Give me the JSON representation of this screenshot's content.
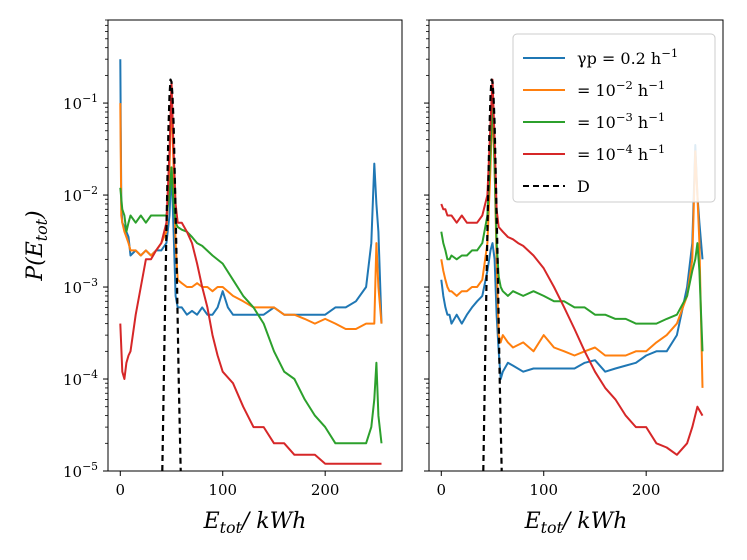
{
  "chart_data": [
    {
      "type": "line",
      "panel": "left",
      "xlabel": "E_tot/ kWh",
      "ylabel": "P(E_tot)",
      "xlim": [
        -12,
        275
      ],
      "ylim": [
        1e-05,
        0.8
      ],
      "yscale": "log",
      "xticks": [
        0,
        100,
        200
      ],
      "yticks": [
        {
          "value": 1e-05,
          "label": "10^-5"
        },
        {
          "value": 0.0001,
          "label": "10^-4"
        },
        {
          "value": 0.001,
          "label": "10^-3"
        },
        {
          "value": 0.01,
          "label": "10^-2"
        },
        {
          "value": 0.1,
          "label": "10^-1"
        }
      ],
      "series": [
        {
          "name": "γp = 0.2 h^-1",
          "color": "#1f77b4",
          "style": "solid",
          "x": [
            0,
            1,
            2,
            4,
            6,
            8,
            10,
            15,
            20,
            25,
            30,
            35,
            40,
            45,
            48,
            50,
            52,
            54,
            56,
            60,
            65,
            70,
            75,
            80,
            85,
            90,
            95,
            100,
            105,
            110,
            120,
            130,
            140,
            150,
            160,
            170,
            180,
            190,
            200,
            210,
            220,
            230,
            240,
            245,
            248,
            250,
            252,
            255
          ],
          "y": [
            0.3,
            0.008,
            0.005,
            0.0045,
            0.004,
            0.0035,
            0.0022,
            0.0025,
            0.0022,
            0.0025,
            0.0022,
            0.0025,
            0.0025,
            0.003,
            0.006,
            0.02,
            0.004,
            0.0008,
            0.0006,
            0.0006,
            0.0005,
            0.00055,
            0.0005,
            0.0006,
            0.0005,
            0.0005,
            0.0006,
            0.0009,
            0.0006,
            0.0005,
            0.0005,
            0.0005,
            0.0005,
            0.0006,
            0.0005,
            0.0005,
            0.0005,
            0.0005,
            0.0005,
            0.0006,
            0.0006,
            0.0007,
            0.001,
            0.003,
            0.022,
            0.008,
            0.004,
            0.0004
          ]
        },
        {
          "name": "= 10^-2 h^-1",
          "color": "#ff7f0e",
          "style": "solid",
          "x": [
            0,
            1,
            2,
            4,
            6,
            8,
            10,
            15,
            20,
            25,
            30,
            35,
            40,
            45,
            48,
            50,
            52,
            54,
            56,
            60,
            65,
            70,
            75,
            80,
            85,
            90,
            95,
            100,
            110,
            120,
            130,
            140,
            150,
            160,
            170,
            180,
            190,
            200,
            210,
            220,
            230,
            240,
            245,
            248,
            250,
            252,
            255
          ],
          "y": [
            0.1,
            0.006,
            0.005,
            0.004,
            0.0035,
            0.003,
            0.0025,
            0.0025,
            0.0022,
            0.0025,
            0.0022,
            0.0025,
            0.003,
            0.004,
            0.02,
            0.13,
            0.02,
            0.003,
            0.0012,
            0.0011,
            0.001,
            0.001,
            0.0011,
            0.001,
            0.001,
            0.0009,
            0.001,
            0.001,
            0.0008,
            0.0007,
            0.0006,
            0.0006,
            0.0006,
            0.0005,
            0.0005,
            0.00045,
            0.0004,
            0.00045,
            0.0004,
            0.00035,
            0.00035,
            0.0004,
            0.0004,
            0.0004,
            0.003,
            0.001,
            0.0004
          ]
        },
        {
          "name": "= 10^-3 h^-1",
          "color": "#2ca02c",
          "style": "solid",
          "x": [
            0,
            2,
            4,
            6,
            8,
            10,
            15,
            20,
            25,
            30,
            35,
            40,
            45,
            48,
            50,
            52,
            54,
            56,
            60,
            65,
            70,
            75,
            80,
            90,
            100,
            110,
            120,
            130,
            140,
            150,
            160,
            170,
            180,
            190,
            200,
            210,
            220,
            230,
            240,
            245,
            248,
            250,
            252,
            255
          ],
          "y": [
            0.012,
            0.007,
            0.006,
            0.004,
            0.005,
            0.006,
            0.005,
            0.006,
            0.005,
            0.006,
            0.006,
            0.006,
            0.006,
            0.01,
            0.02,
            0.008,
            0.005,
            0.0045,
            0.0042,
            0.004,
            0.0035,
            0.003,
            0.0028,
            0.0022,
            0.0018,
            0.0012,
            0.0008,
            0.0006,
            0.0004,
            0.0002,
            0.00012,
            0.0001,
            6e-05,
            4e-05,
            3e-05,
            2e-05,
            2e-05,
            2e-05,
            2e-05,
            3e-05,
            6e-05,
            0.00015,
            4e-05,
            2e-05
          ]
        },
        {
          "name": "= 10^-4 h^-1",
          "color": "#d62728",
          "style": "solid",
          "x": [
            0,
            2,
            4,
            6,
            8,
            10,
            15,
            20,
            25,
            30,
            35,
            40,
            45,
            48,
            50,
            52,
            54,
            56,
            60,
            65,
            70,
            75,
            80,
            85,
            90,
            95,
            100,
            110,
            120,
            130,
            140,
            150,
            160,
            170,
            180,
            190,
            200,
            210,
            220,
            230,
            240,
            245,
            250,
            255
          ],
          "y": [
            0.0004,
            0.00012,
            0.0001,
            0.00015,
            0.00018,
            0.0002,
            0.0005,
            0.001,
            0.002,
            0.002,
            0.0025,
            0.003,
            0.005,
            0.03,
            0.17,
            0.03,
            0.008,
            0.005,
            0.005,
            0.004,
            0.003,
            0.0018,
            0.001,
            0.0006,
            0.0003,
            0.00018,
            0.00012,
            9e-05,
            5e-05,
            3e-05,
            3e-05,
            2e-05,
            2e-05,
            1.5e-05,
            1.5e-05,
            1.5e-05,
            1.2e-05,
            1.2e-05,
            1.2e-05,
            1.2e-05,
            1.2e-05,
            1.2e-05,
            1.2e-05,
            1.2e-05
          ]
        },
        {
          "name": "D",
          "color": "#000000",
          "style": "dashed",
          "x": [
            41,
            43,
            45,
            47,
            48,
            49,
            50,
            51,
            52,
            53,
            55,
            57,
            59
          ],
          "y": [
            1e-05,
            0.0002,
            0.004,
            0.05,
            0.12,
            0.18,
            0.17,
            0.12,
            0.06,
            0.02,
            0.002,
            0.0001,
            1e-05
          ]
        }
      ]
    },
    {
      "type": "line",
      "panel": "right",
      "xlabel": "E_tot/ kWh",
      "ylabel": "",
      "xlim": [
        -12,
        275
      ],
      "ylim": [
        1e-05,
        0.8
      ],
      "yscale": "log",
      "xticks": [
        0,
        100,
        200
      ],
      "legend": {
        "position": "upper right"
      },
      "series": [
        {
          "name": "γp = 0.2 h^-1",
          "color": "#1f77b4",
          "style": "solid",
          "x": [
            0,
            2,
            4,
            6,
            8,
            10,
            15,
            20,
            25,
            30,
            35,
            40,
            45,
            48,
            50,
            52,
            54,
            56,
            58,
            60,
            65,
            70,
            80,
            90,
            100,
            110,
            120,
            130,
            140,
            150,
            160,
            170,
            180,
            190,
            200,
            210,
            220,
            230,
            240,
            245,
            248,
            250,
            252,
            255
          ],
          "y": [
            0.0012,
            0.0008,
            0.0006,
            0.0005,
            0.0005,
            0.0004,
            0.0005,
            0.0004,
            0.0005,
            0.0006,
            0.0007,
            0.0008,
            0.0015,
            0.0025,
            0.003,
            0.002,
            0.0005,
            0.0002,
            0.0001,
            0.00012,
            0.00015,
            0.00014,
            0.00012,
            0.00013,
            0.00013,
            0.00013,
            0.00013,
            0.00013,
            0.00015,
            0.00016,
            0.00012,
            0.00013,
            0.00014,
            0.00015,
            0.00018,
            0.0002,
            0.0002,
            0.0003,
            0.001,
            0.003,
            0.035,
            0.01,
            0.005,
            0.002
          ]
        },
        {
          "name": "= 10^-2 h^-1",
          "color": "#ff7f0e",
          "style": "solid",
          "x": [
            0,
            2,
            4,
            6,
            8,
            10,
            15,
            20,
            25,
            30,
            35,
            40,
            45,
            48,
            50,
            52,
            54,
            56,
            58,
            60,
            65,
            70,
            80,
            90,
            100,
            110,
            120,
            130,
            140,
            150,
            160,
            170,
            180,
            190,
            200,
            210,
            220,
            230,
            240,
            245,
            248,
            250,
            252,
            255
          ],
          "y": [
            0.002,
            0.0015,
            0.0012,
            0.001,
            0.0009,
            0.0009,
            0.0008,
            0.0009,
            0.0009,
            0.001,
            0.001,
            0.0012,
            0.003,
            0.02,
            0.1,
            0.02,
            0.002,
            0.0003,
            0.00025,
            0.0003,
            0.00025,
            0.00022,
            0.00025,
            0.0002,
            0.0003,
            0.00022,
            0.0002,
            0.00018,
            0.0002,
            0.00022,
            0.00018,
            0.00018,
            0.00018,
            0.0002,
            0.0002,
            0.00025,
            0.0003,
            0.0004,
            0.0008,
            0.002,
            0.03,
            0.01,
            0.003,
            8e-05
          ]
        },
        {
          "name": "= 10^-3 h^-1",
          "color": "#2ca02c",
          "style": "solid",
          "x": [
            0,
            2,
            4,
            6,
            8,
            10,
            15,
            20,
            25,
            30,
            35,
            40,
            45,
            48,
            50,
            52,
            54,
            56,
            58,
            60,
            65,
            70,
            80,
            90,
            100,
            110,
            120,
            130,
            140,
            150,
            160,
            170,
            180,
            190,
            200,
            210,
            220,
            230,
            240,
            245,
            248,
            250,
            252,
            255
          ],
          "y": [
            0.004,
            0.003,
            0.0025,
            0.002,
            0.002,
            0.0022,
            0.002,
            0.0022,
            0.0022,
            0.0025,
            0.0025,
            0.003,
            0.006,
            0.03,
            0.15,
            0.02,
            0.003,
            0.0013,
            0.001,
            0.0009,
            0.0008,
            0.0009,
            0.0008,
            0.0009,
            0.0008,
            0.0007,
            0.0007,
            0.0006,
            0.0006,
            0.0005,
            0.0005,
            0.00045,
            0.00045,
            0.0004,
            0.0004,
            0.0004,
            0.00045,
            0.0005,
            0.0008,
            0.0015,
            0.002,
            0.003,
            0.0015,
            0.0002
          ]
        },
        {
          "name": "= 10^-4 h^-1",
          "color": "#d62728",
          "style": "solid",
          "x": [
            0,
            2,
            4,
            6,
            8,
            10,
            15,
            20,
            25,
            30,
            35,
            40,
            45,
            48,
            50,
            52,
            54,
            56,
            60,
            65,
            70,
            75,
            80,
            90,
            100,
            110,
            120,
            130,
            140,
            150,
            160,
            170,
            180,
            190,
            200,
            210,
            220,
            230,
            240,
            245,
            250,
            255
          ],
          "y": [
            0.008,
            0.007,
            0.007,
            0.006,
            0.006,
            0.006,
            0.005,
            0.006,
            0.005,
            0.005,
            0.005,
            0.006,
            0.01,
            0.06,
            0.18,
            0.04,
            0.007,
            0.0045,
            0.004,
            0.0035,
            0.0033,
            0.003,
            0.0028,
            0.0022,
            0.0016,
            0.001,
            0.0006,
            0.00035,
            0.0002,
            0.00012,
            8e-05,
            6e-05,
            4e-05,
            3e-05,
            3e-05,
            2e-05,
            1.8e-05,
            1.5e-05,
            2e-05,
            3e-05,
            5e-05,
            4e-05
          ]
        },
        {
          "name": "D",
          "color": "#000000",
          "style": "dashed",
          "x": [
            41,
            43,
            45,
            47,
            48,
            49,
            50,
            51,
            52,
            53,
            55,
            57,
            59
          ],
          "y": [
            1e-05,
            0.0002,
            0.004,
            0.05,
            0.12,
            0.18,
            0.17,
            0.12,
            0.06,
            0.02,
            0.002,
            0.0001,
            1e-05
          ]
        }
      ]
    }
  ]
}
